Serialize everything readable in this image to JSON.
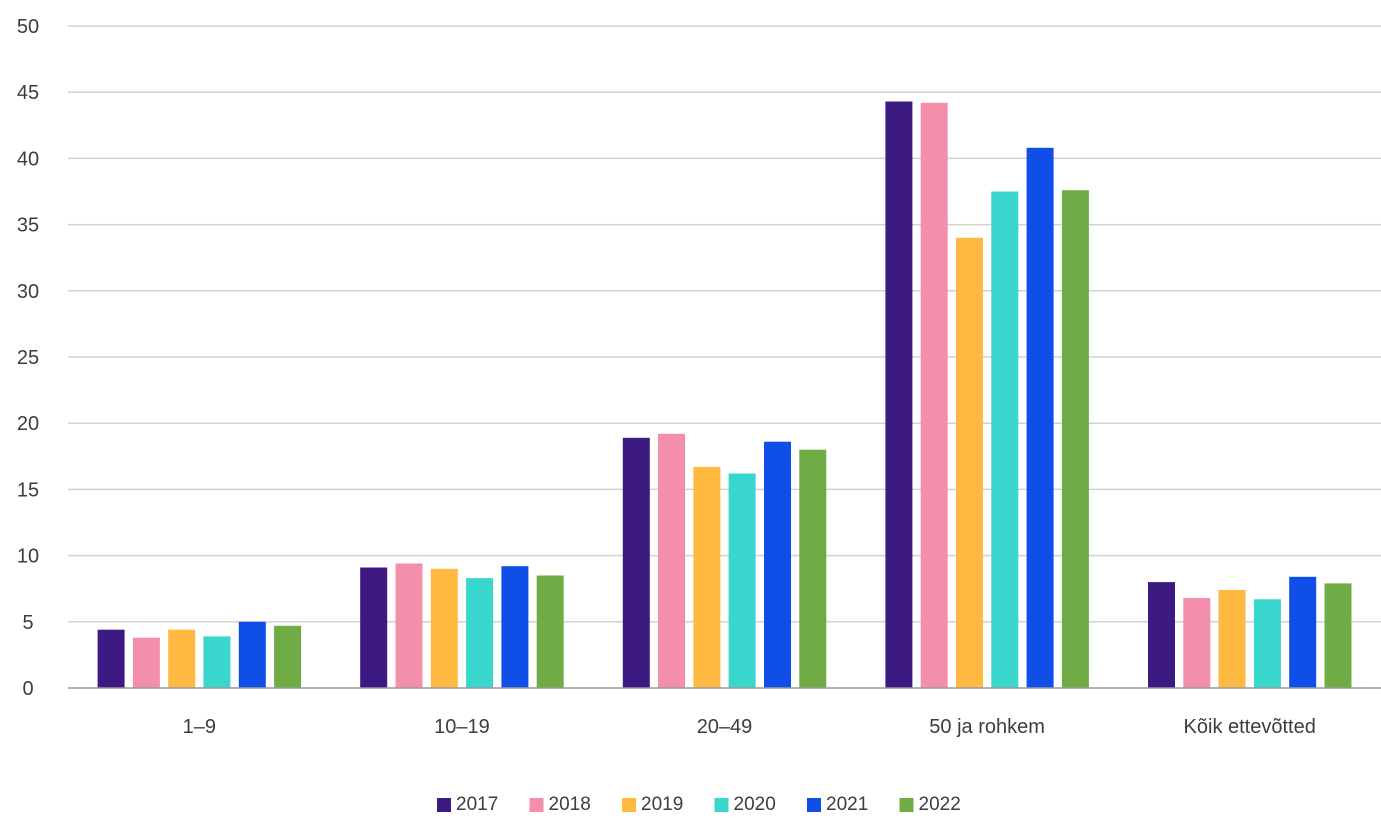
{
  "chart_data": {
    "type": "bar",
    "title": "",
    "xlabel": "",
    "ylabel": "",
    "ylim": [
      0,
      50
    ],
    "yticks": [
      0,
      5,
      10,
      15,
      20,
      25,
      30,
      35,
      40,
      45,
      50
    ],
    "grid": true,
    "legend_position": "bottom-center",
    "categories": [
      "1–9",
      "10–19",
      "20–49",
      "50 ja rohkem",
      "Kõik ettevõtted"
    ],
    "series": [
      {
        "name": "2017",
        "color": "#3d1a82",
        "values": [
          4.4,
          9.1,
          18.9,
          44.3,
          8.0
        ]
      },
      {
        "name": "2018",
        "color": "#f38fab",
        "values": [
          3.8,
          9.4,
          19.2,
          44.2,
          6.8
        ]
      },
      {
        "name": "2019",
        "color": "#ffb840",
        "values": [
          4.4,
          9.0,
          16.7,
          34.0,
          7.4
        ]
      },
      {
        "name": "2020",
        "color": "#38d6cc",
        "values": [
          3.9,
          8.3,
          16.2,
          37.5,
          6.7
        ]
      },
      {
        "name": "2021",
        "color": "#0f4fe8",
        "values": [
          5.0,
          9.2,
          18.6,
          40.8,
          8.4
        ]
      },
      {
        "name": "2022",
        "color": "#6fac46",
        "values": [
          4.7,
          8.5,
          18.0,
          37.6,
          7.9
        ]
      }
    ]
  }
}
